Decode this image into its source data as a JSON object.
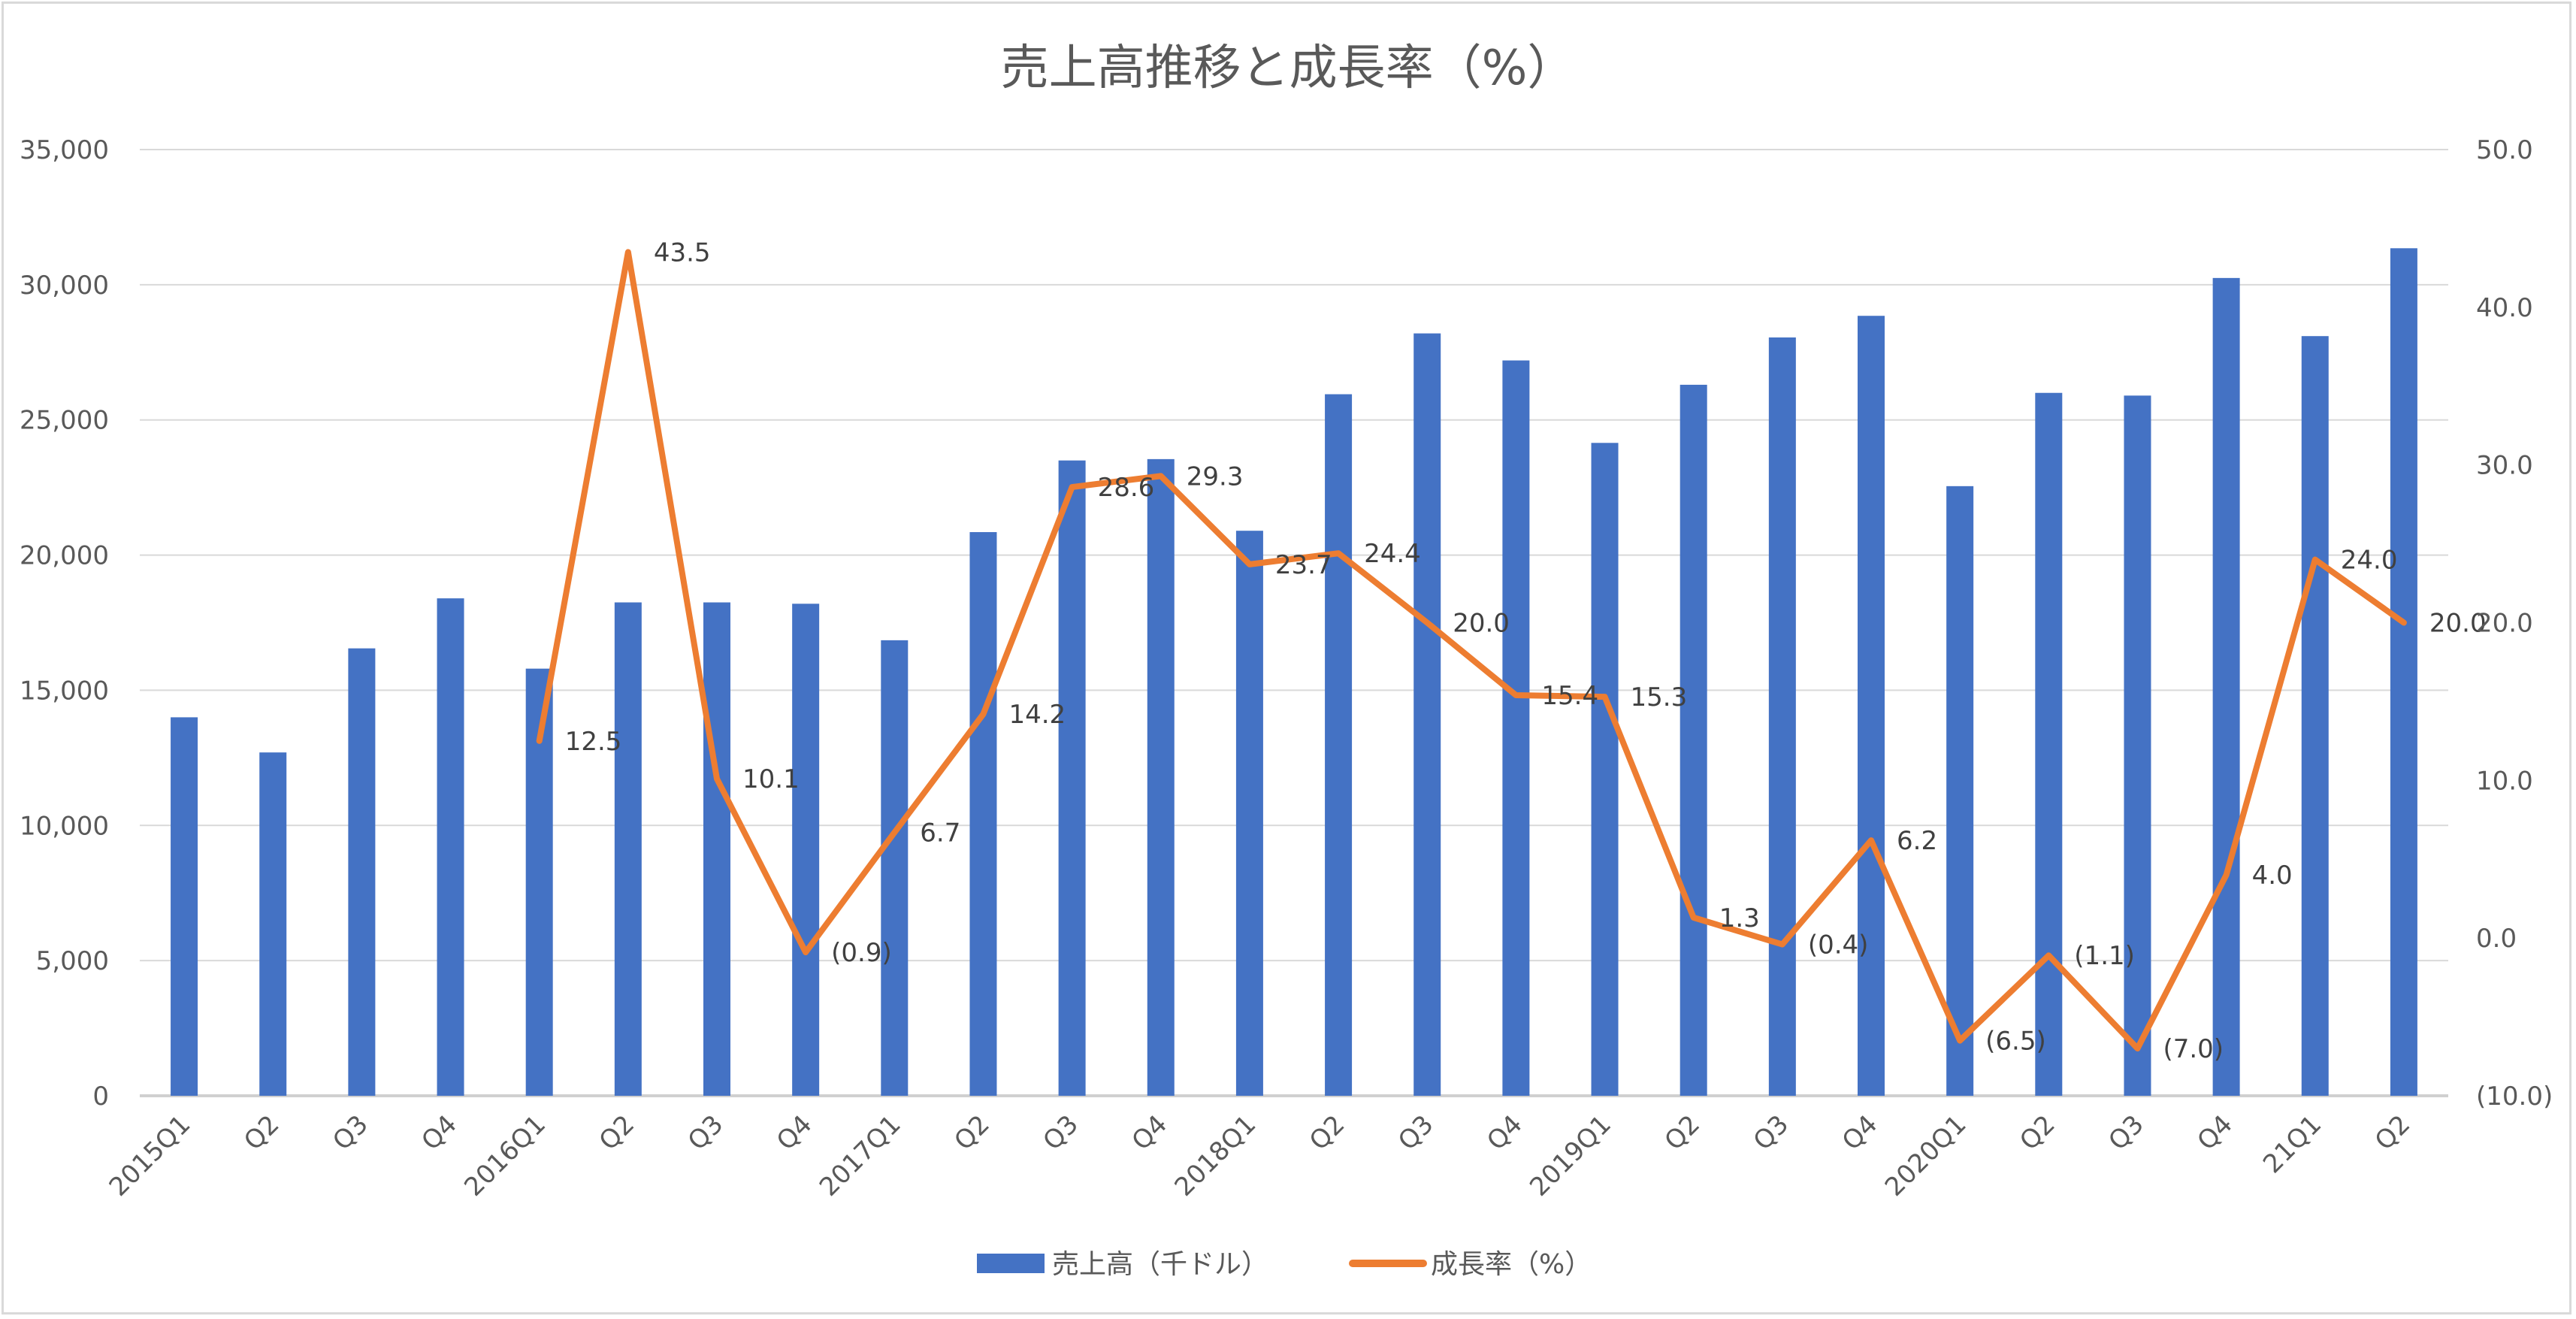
{
  "chart_data": {
    "type": "bar+line",
    "title": "売上高推移と成長率（%）",
    "categories": [
      "2015Q1",
      "Q2",
      "Q3",
      "Q4",
      "2016Q1",
      "Q2",
      "Q3",
      "Q4",
      "2017Q1",
      "Q2",
      "Q3",
      "Q4",
      "2018Q1",
      "Q2",
      "Q3",
      "Q4",
      "2019Q1",
      "Q2",
      "Q3",
      "Q4",
      "2020Q1",
      "Q2",
      "Q3",
      "Q4",
      "21Q1",
      "Q2"
    ],
    "series": [
      {
        "name": "売上高（千ドル）",
        "type": "bar",
        "axis": "left",
        "color": "#4472c4",
        "values": [
          14000,
          12700,
          16550,
          18400,
          15800,
          18250,
          18250,
          18200,
          16850,
          20850,
          23500,
          23550,
          20900,
          25950,
          28200,
          27200,
          24150,
          26300,
          28050,
          28850,
          22550,
          26000,
          25900,
          30250,
          28100,
          31350
        ]
      },
      {
        "name": "成長率（%）",
        "type": "line",
        "axis": "right",
        "color": "#ed7d31",
        "values": [
          null,
          null,
          null,
          null,
          12.5,
          43.5,
          10.1,
          -0.9,
          6.7,
          14.2,
          28.6,
          29.3,
          23.7,
          24.4,
          20.0,
          15.4,
          15.3,
          1.3,
          -0.4,
          6.2,
          -6.5,
          -1.1,
          -7.0,
          4.0,
          24.0,
          20.0
        ],
        "labels": [
          null,
          null,
          null,
          null,
          "12.5",
          "43.5",
          "10.1",
          "(0.9)",
          "6.7",
          "14.2",
          "28.6",
          "29.3",
          "23.7",
          "24.4",
          "20.0",
          "15.4",
          "15.3",
          "1.3",
          "(0.4)",
          "6.2",
          "(6.5)",
          "(1.1)",
          "(7.0)",
          "4.0",
          "24.0",
          "20.0"
        ]
      }
    ],
    "left_axis": {
      "ylim": [
        0,
        35000
      ],
      "ticks": [
        "0",
        "5,000",
        "10,000",
        "15,000",
        "20,000",
        "25,000",
        "30,000",
        "35,000"
      ]
    },
    "right_axis": {
      "ylim": [
        -10,
        50
      ],
      "ticks": [
        "(10.0)",
        "0.0",
        "10.0",
        "20.0",
        "30.0",
        "40.0",
        "50.0"
      ]
    },
    "negative_label_color": "#ff0000",
    "grid": true,
    "legend": "bottom"
  }
}
